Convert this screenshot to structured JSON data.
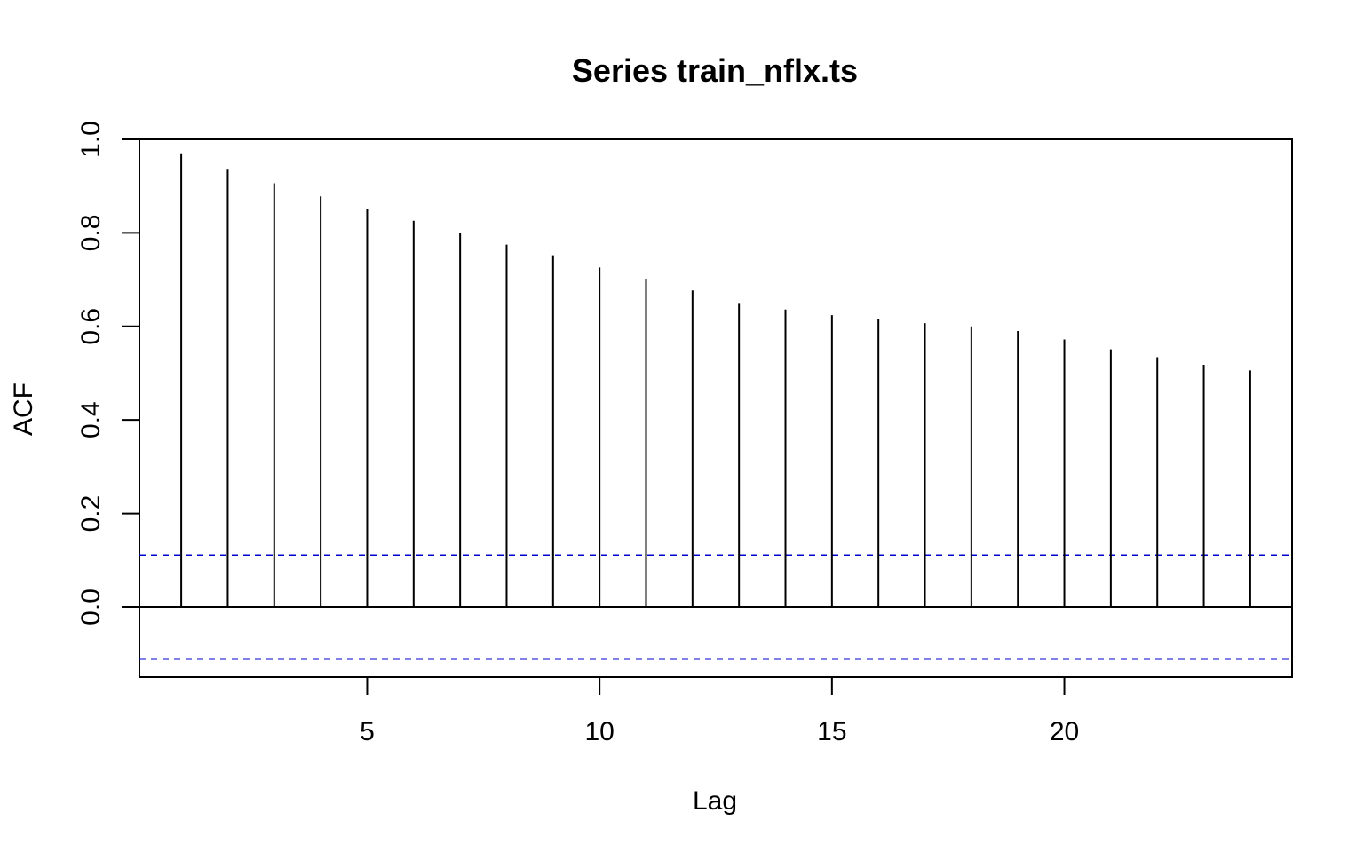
{
  "chart_data": {
    "type": "bar",
    "title": "Series train_nflx.ts",
    "xlabel": "Lag",
    "ylabel": "ACF",
    "xlim": [
      0.1,
      24.9
    ],
    "ylim": [
      -0.15,
      1.0
    ],
    "x_ticks": [
      5,
      10,
      15,
      20
    ],
    "x_tick_labels": [
      "5",
      "10",
      "15",
      "20"
    ],
    "y_ticks": [
      0.0,
      0.2,
      0.4,
      0.6,
      0.8,
      1.0
    ],
    "y_tick_labels": [
      "0.0",
      "0.2",
      "0.4",
      "0.6",
      "0.8",
      "1.0"
    ],
    "series": [
      {
        "lags": [
          1,
          2,
          3,
          4,
          5,
          6,
          7,
          8,
          9,
          10,
          11,
          12,
          13,
          14,
          15,
          16,
          17,
          18,
          19,
          20,
          21,
          22,
          23,
          24
        ],
        "values": [
          0.97,
          0.937,
          0.906,
          0.878,
          0.851,
          0.826,
          0.8,
          0.775,
          0.752,
          0.726,
          0.702,
          0.677,
          0.65,
          0.636,
          0.624,
          0.615,
          0.607,
          0.6,
          0.59,
          0.572,
          0.551,
          0.534,
          0.518,
          0.506
        ]
      }
    ],
    "confidence_bounds": [
      0.111,
      -0.111
    ],
    "colors": {
      "bars": "#000000",
      "confidence": "#0000cc",
      "frame": "#000000"
    },
    "grid": false,
    "legend": "none"
  }
}
